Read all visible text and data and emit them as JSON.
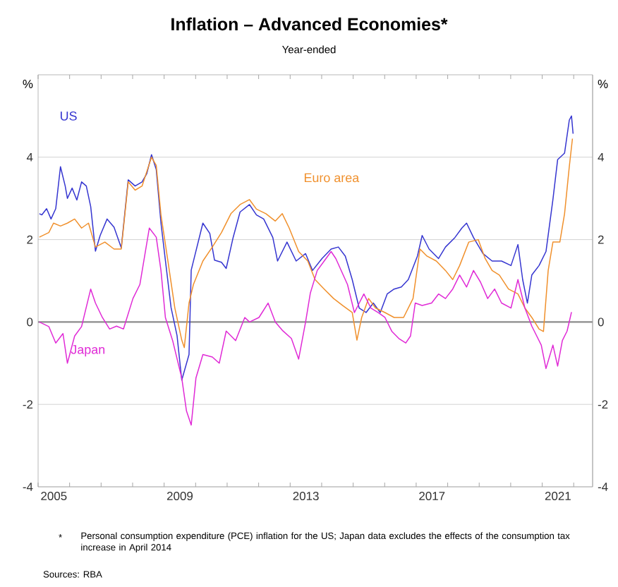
{
  "chart_data": {
    "type": "line",
    "title": "Inflation – Advanced Economies*",
    "subtitle": "Year-ended",
    "ylabel": "%",
    "y2label": "%",
    "annotations": [
      "*",
      "Personal consumption expenditure (PCE) inflation for the US; Japan data excludes the effects of the consumption tax increase in April 2014",
      "Sources: RBA"
    ],
    "xlim": [
      2005,
      2022.6
    ],
    "xticks": [
      {
        "value": 2005,
        "label": null
      },
      {
        "value": 2006,
        "label": null
      },
      {
        "value": 2007,
        "label": null
      },
      {
        "value": 2008,
        "label": null
      },
      {
        "value": 2009,
        "label": null
      },
      {
        "value": 2010,
        "label": null
      },
      {
        "value": 2011,
        "label": null
      },
      {
        "value": 2012,
        "label": null
      },
      {
        "value": 2013,
        "label": null
      },
      {
        "value": 2014,
        "label": null
      },
      {
        "value": 2015,
        "label": null
      },
      {
        "value": 2016,
        "label": null
      },
      {
        "value": 2017,
        "label": null
      },
      {
        "value": 2018,
        "label": null
      },
      {
        "value": 2019,
        "label": null
      },
      {
        "value": 2020,
        "label": null
      },
      {
        "value": 2021,
        "label": null
      },
      {
        "value": 2022,
        "label": null
      },
      {
        "value": 2005.5,
        "label": "2005"
      },
      {
        "value": 2009.5,
        "label": "2009"
      },
      {
        "value": 2013.5,
        "label": "2013"
      },
      {
        "value": 2017.5,
        "label": "2017"
      },
      {
        "value": 2021.5,
        "label": "2021"
      }
    ],
    "ylim": [
      -4,
      6
    ],
    "yticks": [
      -4,
      -2,
      0,
      2,
      4
    ],
    "y2lim": [
      -4,
      6
    ],
    "y2ticks": [
      -4,
      -2,
      0,
      2,
      4
    ],
    "grid": "y",
    "ref_lines": [
      {
        "axis": "y",
        "value": 0,
        "color": "#8c8c8c"
      }
    ],
    "series": [
      {
        "name": "US",
        "color": "#3535d0",
        "x": [
          2005.04,
          2005.12,
          2005.27,
          2005.41,
          2005.56,
          2005.71,
          2005.86,
          2005.93,
          2006.08,
          2006.23,
          2006.38,
          2006.53,
          2006.67,
          2006.82,
          2006.97,
          2007.19,
          2007.41,
          2007.64,
          2007.86,
          2008.08,
          2008.3,
          2008.45,
          2008.6,
          2008.75,
          2008.9,
          2009.04,
          2009.22,
          2009.41,
          2009.56,
          2009.79,
          2009.86,
          2010.23,
          2010.45,
          2010.6,
          2010.82,
          2010.97,
          2011.19,
          2011.41,
          2011.71,
          2011.93,
          2012.16,
          2012.45,
          2012.6,
          2012.9,
          2013.19,
          2013.49,
          2013.71,
          2014.01,
          2014.3,
          2014.53,
          2014.75,
          2014.97,
          2015.19,
          2015.41,
          2015.64,
          2015.86,
          2016.08,
          2016.3,
          2016.53,
          2016.75,
          2017.04,
          2017.19,
          2017.41,
          2017.71,
          2017.93,
          2018.23,
          2018.45,
          2018.6,
          2018.82,
          2019.12,
          2019.41,
          2019.71,
          2020.01,
          2020.23,
          2020.38,
          2020.53,
          2020.67,
          2020.9,
          2021.12,
          2021.34,
          2021.49,
          2021.71,
          2021.86,
          2021.93,
          2021.98
        ],
        "values": [
          2.63,
          2.6,
          2.75,
          2.5,
          2.75,
          3.77,
          3.3,
          3.0,
          3.25,
          2.96,
          3.4,
          3.3,
          2.8,
          1.72,
          2.1,
          2.5,
          2.3,
          1.8,
          3.45,
          3.3,
          3.4,
          3.6,
          4.06,
          3.7,
          2.4,
          1.5,
          0.35,
          -0.33,
          -1.41,
          -0.79,
          1.26,
          2.4,
          2.15,
          1.5,
          1.45,
          1.3,
          2.05,
          2.67,
          2.85,
          2.6,
          2.5,
          2.05,
          1.48,
          1.94,
          1.48,
          1.66,
          1.25,
          1.54,
          1.77,
          1.82,
          1.6,
          1.03,
          0.34,
          0.23,
          0.46,
          0.23,
          0.68,
          0.8,
          0.85,
          1.03,
          1.6,
          2.1,
          1.77,
          1.54,
          1.82,
          2.05,
          2.28,
          2.4,
          2.05,
          1.66,
          1.48,
          1.48,
          1.37,
          1.88,
          1.03,
          0.46,
          1.14,
          1.37,
          1.71,
          2.97,
          3.94,
          4.1,
          4.9,
          5.0,
          4.57
        ]
      },
      {
        "name": "Euro area",
        "color": "#f0902c",
        "x": [
          2005.04,
          2005.34,
          2005.49,
          2005.71,
          2005.93,
          2006.16,
          2006.38,
          2006.6,
          2006.82,
          2007.12,
          2007.41,
          2007.64,
          2007.86,
          2008.08,
          2008.3,
          2008.6,
          2008.75,
          2008.9,
          2009.12,
          2009.34,
          2009.56,
          2009.64,
          2009.79,
          2009.93,
          2010.23,
          2010.53,
          2010.82,
          2011.12,
          2011.41,
          2011.71,
          2011.93,
          2012.23,
          2012.53,
          2012.75,
          2012.97,
          2013.27,
          2013.56,
          2013.79,
          2014.08,
          2014.38,
          2014.67,
          2014.97,
          2015.12,
          2015.27,
          2015.49,
          2015.71,
          2016.01,
          2016.3,
          2016.6,
          2016.9,
          2017.12,
          2017.34,
          2017.64,
          2017.93,
          2018.16,
          2018.38,
          2018.67,
          2018.97,
          2019.19,
          2019.41,
          2019.64,
          2019.93,
          2020.23,
          2020.45,
          2020.67,
          2020.9,
          2021.04,
          2021.19,
          2021.34,
          2021.56,
          2021.71,
          2021.86,
          2021.96
        ],
        "values": [
          2.06,
          2.17,
          2.4,
          2.33,
          2.4,
          2.5,
          2.28,
          2.4,
          1.82,
          1.94,
          1.77,
          1.77,
          3.4,
          3.2,
          3.3,
          4.0,
          3.8,
          2.6,
          1.48,
          0.34,
          -0.44,
          -0.62,
          0.46,
          0.91,
          1.48,
          1.82,
          2.17,
          2.63,
          2.85,
          2.97,
          2.74,
          2.63,
          2.45,
          2.63,
          2.28,
          1.71,
          1.48,
          1.03,
          0.8,
          0.57,
          0.4,
          0.23,
          -0.44,
          0.11,
          0.57,
          0.34,
          0.23,
          0.11,
          0.11,
          0.57,
          1.77,
          1.6,
          1.48,
          1.25,
          1.03,
          1.37,
          1.94,
          2.0,
          1.54,
          1.25,
          1.14,
          0.8,
          0.68,
          0.34,
          0.11,
          -0.17,
          -0.23,
          1.25,
          1.94,
          1.94,
          2.63,
          3.77,
          4.45
        ]
      },
      {
        "name": "Japan",
        "color": "#e02ad6",
        "x": [
          2005.04,
          2005.34,
          2005.56,
          2005.79,
          2005.93,
          2006.16,
          2006.38,
          2006.67,
          2006.82,
          2007.04,
          2007.27,
          2007.49,
          2007.71,
          2008.01,
          2008.23,
          2008.53,
          2008.75,
          2008.9,
          2009.04,
          2009.27,
          2009.56,
          2009.71,
          2009.86,
          2010.01,
          2010.23,
          2010.53,
          2010.75,
          2010.97,
          2011.27,
          2011.56,
          2011.71,
          2012.01,
          2012.3,
          2012.53,
          2012.75,
          2013.04,
          2013.27,
          2013.49,
          2013.64,
          2013.86,
          2014.08,
          2014.3,
          2014.45,
          2014.82,
          2015.04,
          2015.34,
          2015.56,
          2015.79,
          2016.01,
          2016.23,
          2016.45,
          2016.67,
          2016.82,
          2016.97,
          2017.19,
          2017.49,
          2017.71,
          2017.93,
          2018.16,
          2018.38,
          2018.6,
          2018.82,
          2019.04,
          2019.27,
          2019.49,
          2019.71,
          2020.01,
          2020.23,
          2020.45,
          2020.67,
          2020.97,
          2021.12,
          2021.34,
          2021.49,
          2021.64,
          2021.79,
          2021.93
        ],
        "values": [
          0.0,
          -0.11,
          -0.51,
          -0.28,
          -1.0,
          -0.34,
          -0.11,
          0.8,
          0.46,
          0.11,
          -0.17,
          -0.1,
          -0.17,
          0.57,
          0.91,
          2.28,
          2.06,
          1.25,
          0.11,
          -0.45,
          -1.36,
          -2.16,
          -2.5,
          -1.36,
          -0.79,
          -0.85,
          -1.0,
          -0.22,
          -0.45,
          0.11,
          0.0,
          0.11,
          0.46,
          0.0,
          -0.2,
          -0.4,
          -0.9,
          0.0,
          0.7,
          1.25,
          1.48,
          1.71,
          1.54,
          0.91,
          0.23,
          0.68,
          0.34,
          0.23,
          0.11,
          -0.23,
          -0.4,
          -0.51,
          -0.34,
          0.46,
          0.4,
          0.46,
          0.68,
          0.57,
          0.8,
          1.14,
          0.85,
          1.25,
          0.97,
          0.57,
          0.8,
          0.46,
          0.34,
          1.03,
          0.34,
          -0.1,
          -0.56,
          -1.13,
          -0.56,
          -1.07,
          -0.45,
          -0.22,
          0.24
        ]
      }
    ]
  }
}
